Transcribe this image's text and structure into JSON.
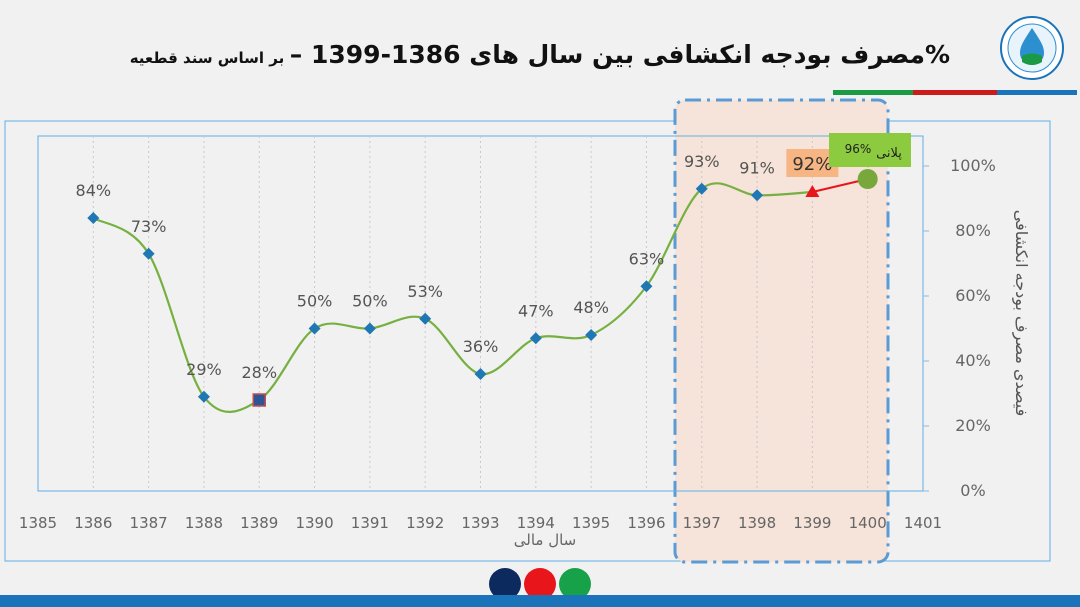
{
  "header": {
    "title_main": "%مصرف بودجه انکشافی  بین سال های 1386-1399 –",
    "title_sub": "بر اساس سند قطعیه"
  },
  "colors": {
    "stripe": [
      "#1a9a45",
      "#cc1b1b",
      "#1b73b9"
    ],
    "footer_dots": [
      "#0d2a5e",
      "#e8151b",
      "#17a24a"
    ],
    "line": "#76b041",
    "marker": "#1f77b4",
    "highlight_fill": "#f6e3d9",
    "highlight_border": "#5b9bd5"
  },
  "icons": {
    "logo": "water-drop-seal-icon"
  },
  "chart_data": {
    "type": "line",
    "title": "",
    "xlabel": "سال مالی",
    "ylabel": "فیصدی مصرف بودجه انکشافی",
    "xticks": [
      "1385",
      "1386",
      "1387",
      "1388",
      "1389",
      "1390",
      "1391",
      "1392",
      "1393",
      "1394",
      "1395",
      "1396",
      "1397",
      "1398",
      "1399",
      "1400",
      "1401"
    ],
    "xlim": [
      1385,
      1401
    ],
    "ylim": [
      0,
      100
    ],
    "yticks": [
      "0%",
      "20%",
      "40%",
      "60%",
      "80%",
      "100%"
    ],
    "grid": "vertical-dotted",
    "series": [
      {
        "x": [
          1386,
          1387,
          1388,
          1389,
          1390,
          1391,
          1392,
          1393,
          1394,
          1395,
          1396,
          1397,
          1398,
          1399
        ],
        "values": [
          84,
          73,
          29,
          28,
          50,
          50,
          53,
          36,
          47,
          48,
          63,
          93,
          91,
          92
        ],
        "labels": [
          "84%",
          "73%",
          "29%",
          "28%",
          "50%",
          "50%",
          "53%",
          "36%",
          "47%",
          "48%",
          "63%",
          "93%",
          "91%",
          "92%"
        ]
      },
      {
        "x": [
          1399,
          1400
        ],
        "values": [
          92,
          96
        ],
        "labels": [
          "",
          "96%"
        ]
      }
    ],
    "annotations": [
      {
        "text": "پلانی",
        "x": 1400,
        "y": 96
      },
      {
        "text": "96%",
        "x": 1400,
        "y": 96
      },
      {
        "text": "92%",
        "x": 1399,
        "y": 92
      }
    ],
    "highlight_range": [
      1397,
      1400
    ]
  }
}
